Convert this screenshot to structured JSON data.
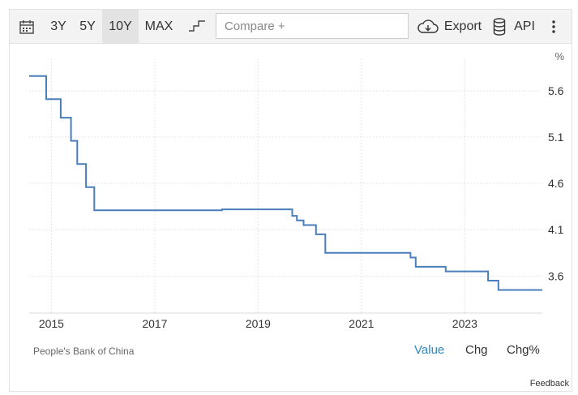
{
  "toolbar": {
    "ranges": [
      "3Y",
      "5Y",
      "10Y",
      "MAX"
    ],
    "active_range": "10Y",
    "compare_placeholder": "Compare +",
    "export_label": "Export",
    "api_label": "API",
    "icons": [
      "calendar-icon",
      "step-chart-icon",
      "cloud-download-icon",
      "database-icon",
      "more-vertical-icon"
    ]
  },
  "footer": {
    "source": "People's Bank of China",
    "modes": [
      "Value",
      "Chg",
      "Chg%"
    ],
    "active_mode": "Value",
    "feedback": "Feedback"
  },
  "colors": {
    "line": "#4a7ebb",
    "active_mode": "#2d86c7",
    "grid": "#e5e5e5"
  },
  "chart_data": {
    "type": "line",
    "step": true,
    "unit_label": "%",
    "y_axis_position": "right",
    "xlim": [
      2014.57,
      2024.5
    ],
    "ylim": [
      3.2,
      5.95
    ],
    "x_ticks": [
      "2015",
      "2017",
      "2019",
      "2021",
      "2023"
    ],
    "y_ticks": [
      "5.6",
      "5.1",
      "4.6",
      "4.1",
      "3.6"
    ],
    "grid": true,
    "series": [
      {
        "name": "",
        "x": [
          2014.57,
          2014.9,
          2015.18,
          2015.38,
          2015.5,
          2015.67,
          2015.83,
          2018.3,
          2019.66,
          2019.75,
          2019.88,
          2020.12,
          2020.3,
          2021.95,
          2022.05,
          2022.63,
          2023.45,
          2023.65,
          2024.5
        ],
        "y": [
          5.76,
          5.51,
          5.31,
          5.06,
          4.81,
          4.56,
          4.31,
          4.32,
          4.25,
          4.2,
          4.15,
          4.05,
          3.85,
          3.8,
          3.7,
          3.65,
          3.55,
          3.45,
          3.45
        ]
      }
    ]
  }
}
